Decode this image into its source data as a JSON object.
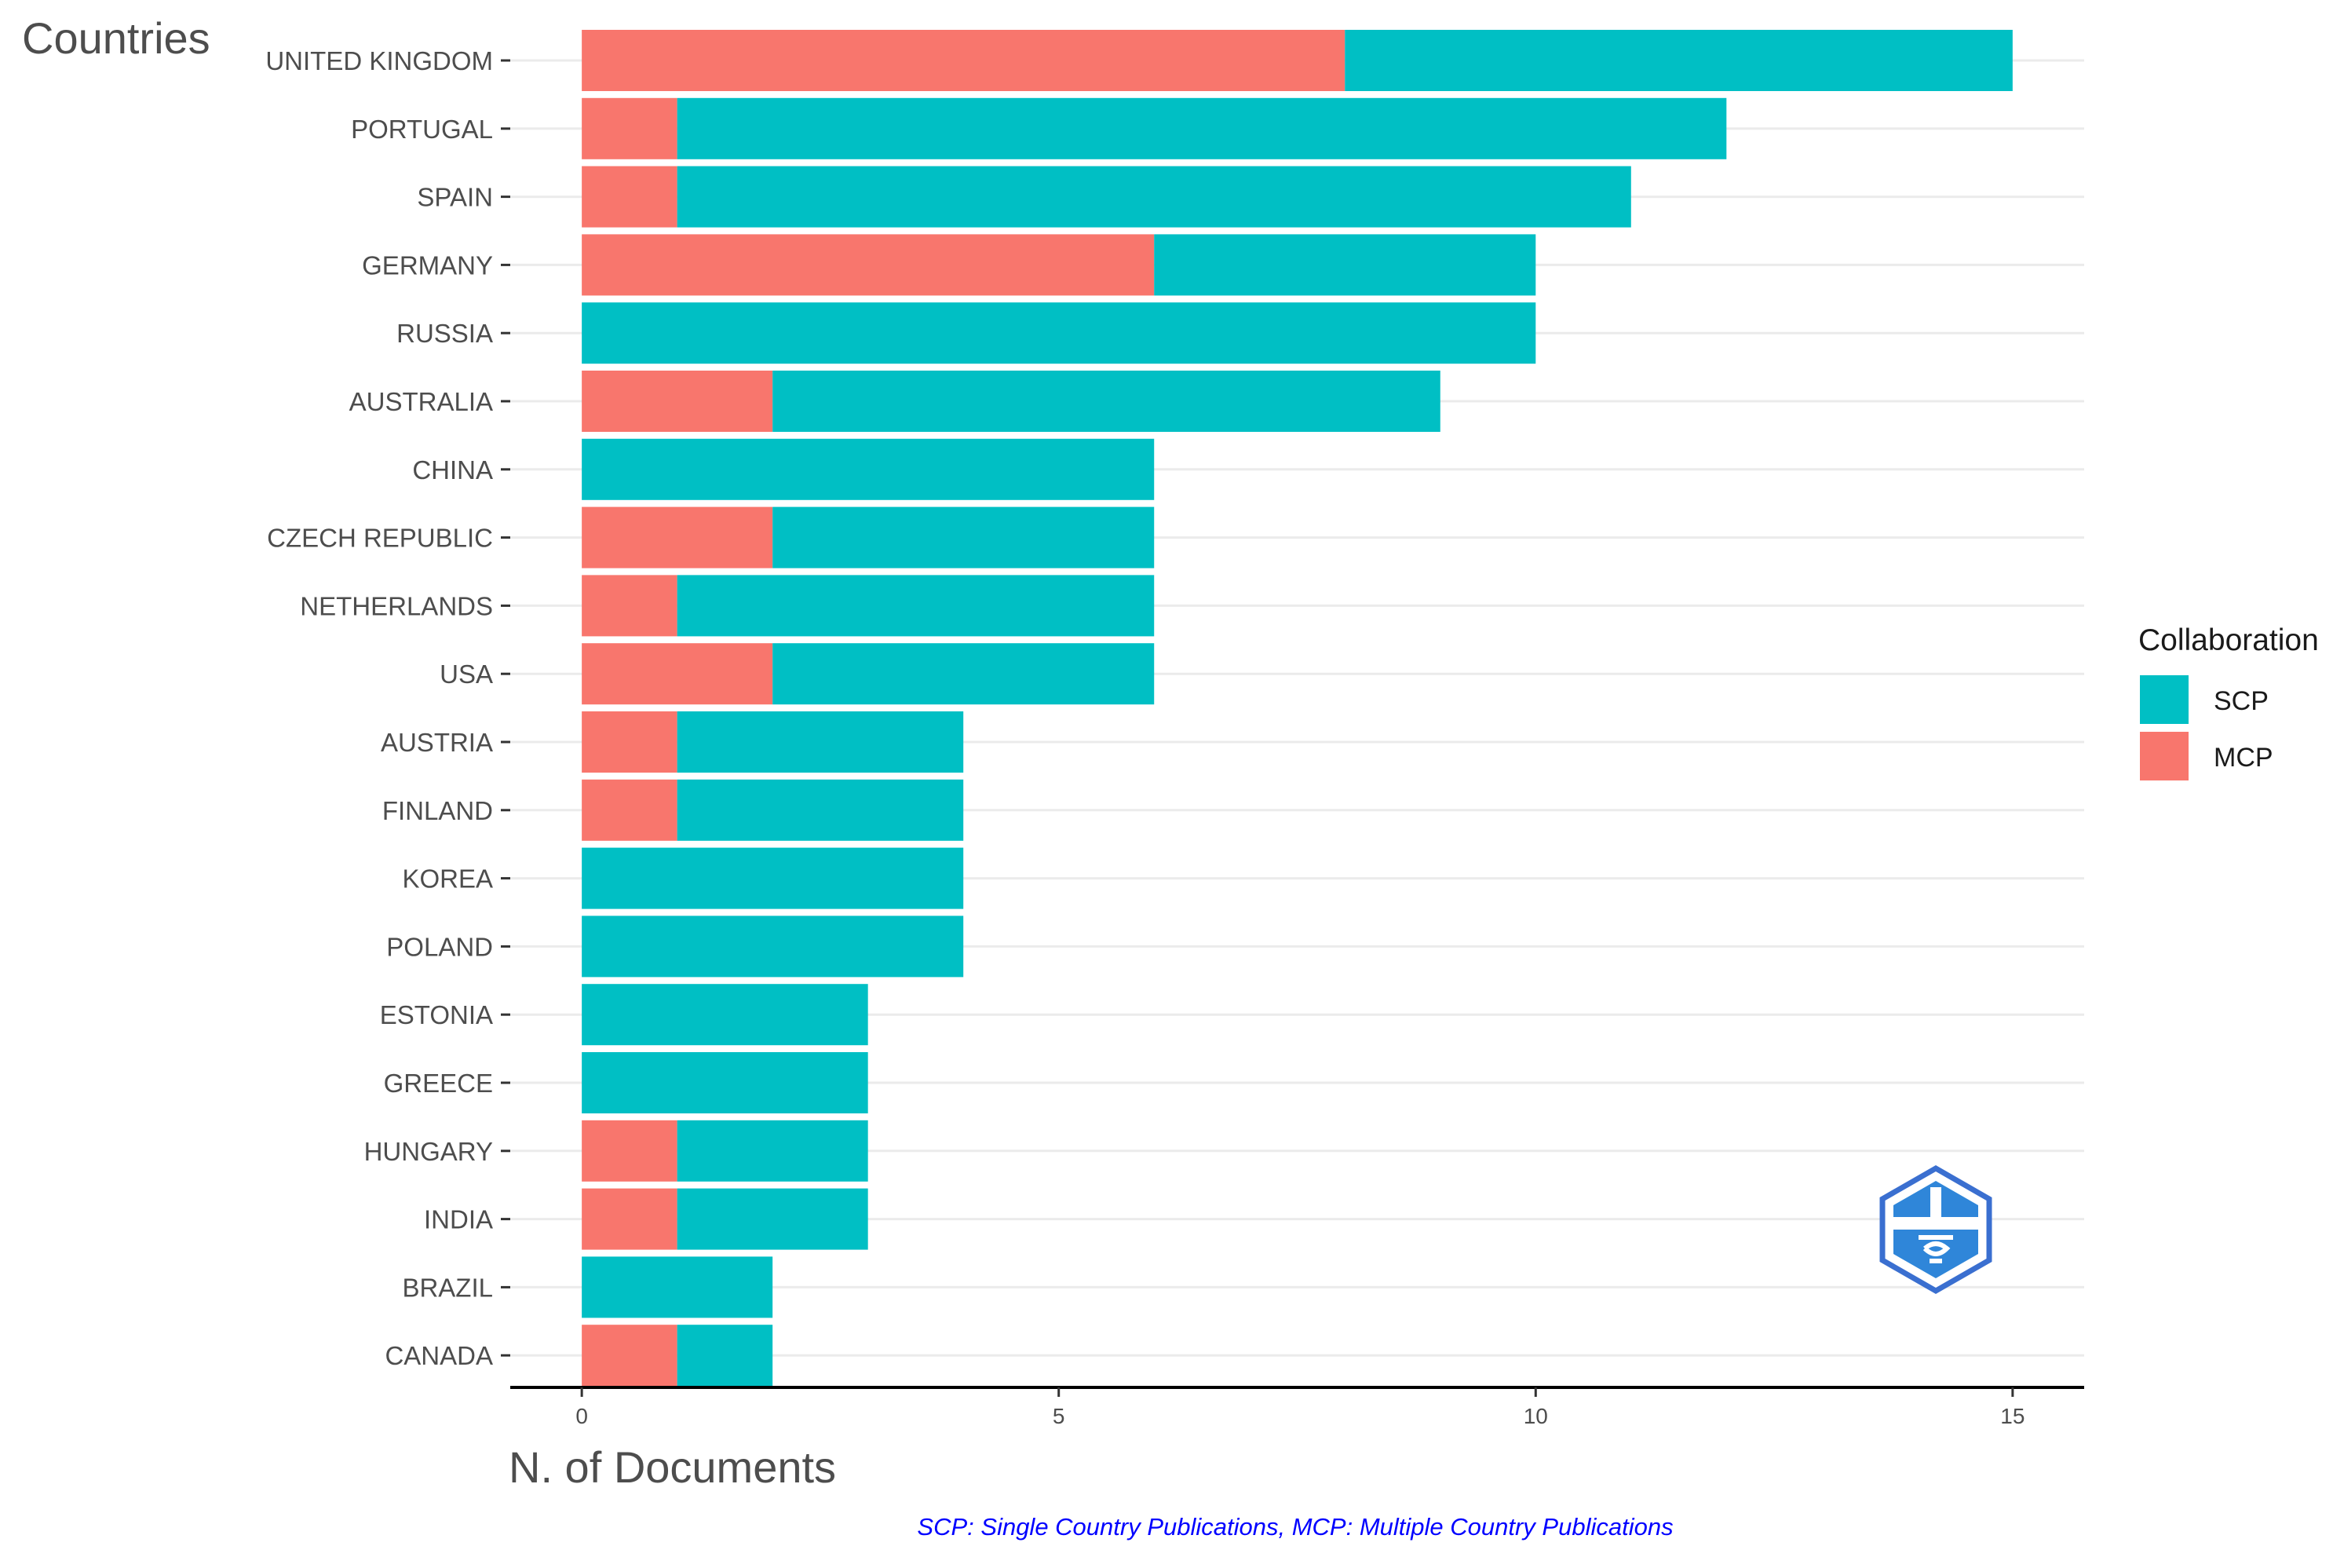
{
  "chart_data": {
    "type": "bar",
    "orientation": "horizontal",
    "stacked": true,
    "categories": [
      "UNITED KINGDOM",
      "PORTUGAL",
      "SPAIN",
      "GERMANY",
      "RUSSIA",
      "AUSTRALIA",
      "CHINA",
      "CZECH REPUBLIC",
      "NETHERLANDS",
      "USA",
      "AUSTRIA",
      "FINLAND",
      "KOREA",
      "POLAND",
      "ESTONIA",
      "GREECE",
      "HUNGARY",
      "INDIA",
      "BRAZIL",
      "CANADA"
    ],
    "series": [
      {
        "name": "MCP",
        "color": "#F8766D",
        "values": [
          8,
          1,
          1,
          6,
          0,
          2,
          0,
          2,
          1,
          2,
          1,
          1,
          0,
          0,
          0,
          0,
          1,
          1,
          0,
          1
        ]
      },
      {
        "name": "SCP",
        "color": "#00BFC4",
        "values": [
          7,
          11,
          10,
          4,
          10,
          7,
          6,
          4,
          5,
          4,
          3,
          3,
          4,
          4,
          3,
          3,
          2,
          2,
          2,
          1
        ]
      }
    ],
    "xlim": [
      -0.75,
      15.75
    ],
    "xticks": [
      0,
      5,
      10,
      15
    ],
    "xtick_labels": [
      "0",
      "5",
      "10",
      "15"
    ],
    "xlabel": "N. of Documents",
    "ylabel": "Countries",
    "legend": {
      "title": "Collaboration",
      "position": "right",
      "entries": [
        {
          "label": "SCP",
          "color": "#00BFC4"
        },
        {
          "label": "MCP",
          "color": "#F8766D"
        }
      ]
    },
    "caption": "SCP: Single Country Publications, MCP: Multiple Country Publications",
    "caption_color": "#0000FF",
    "grid": true
  }
}
